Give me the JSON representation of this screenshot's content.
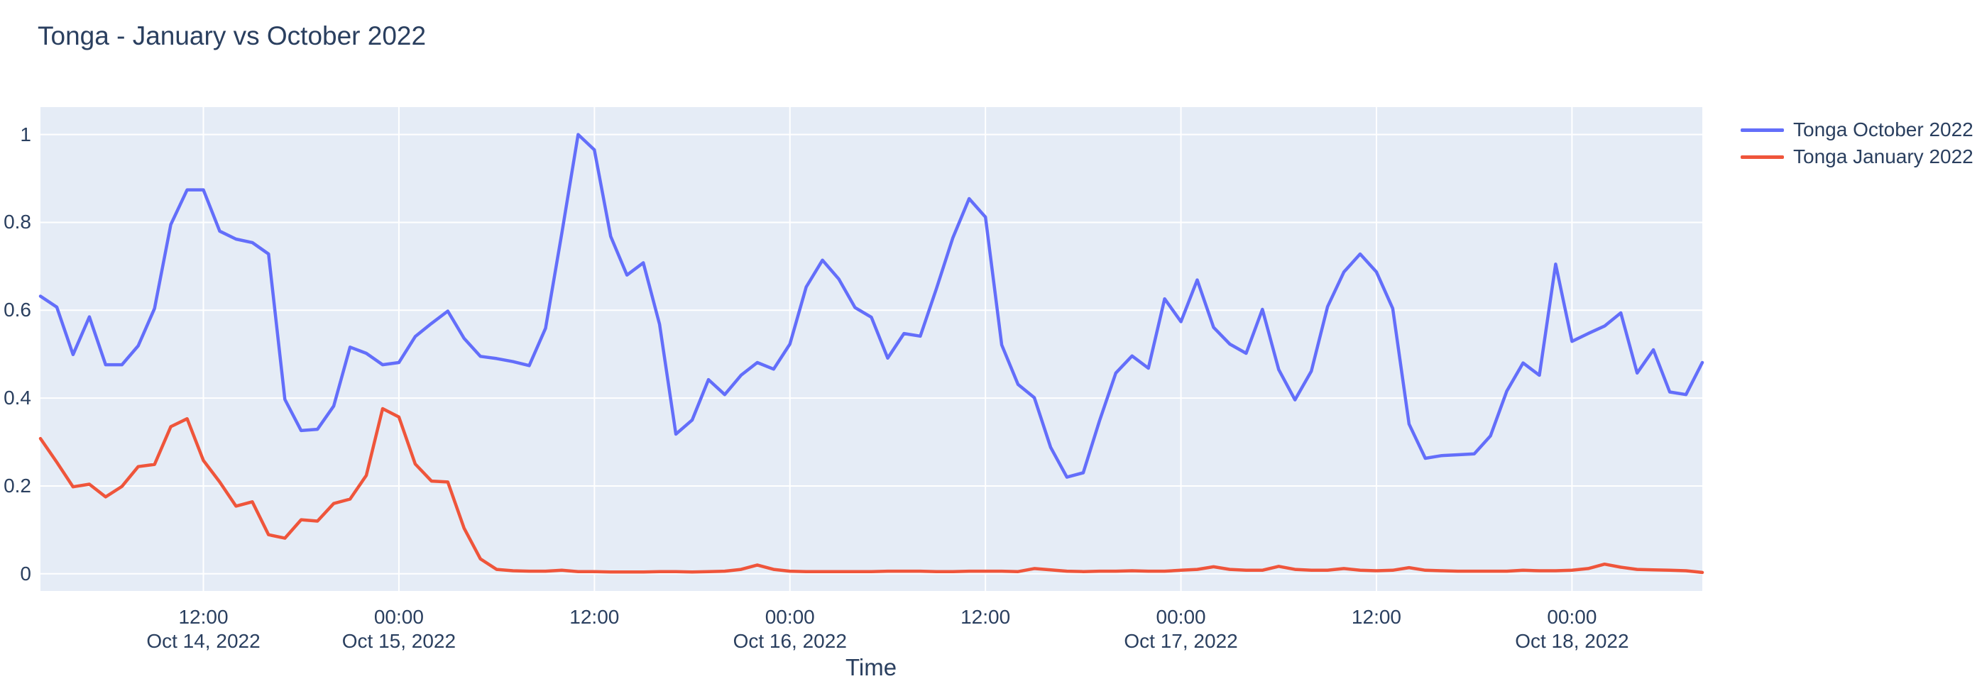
{
  "page": {
    "background": "#ffffff",
    "text_color": "#2a3f5f"
  },
  "chart_data": {
    "type": "line",
    "title": "Tonga - January vs October 2022",
    "xlabel": "Time",
    "ylabel": "",
    "plot_bg": "#e5ecf6",
    "grid": true,
    "grid_color": "#ffffff",
    "legend_position": "top-right-outside",
    "x_start": "2022-10-14 02:00",
    "x_end": "2022-10-18 08:00",
    "x_interval_hours": 1,
    "ylim": [
      -0.04,
      1.06
    ],
    "y_ticks": [
      {
        "value": 0,
        "label": "0"
      },
      {
        "value": 0.2,
        "label": "0.2"
      },
      {
        "value": 0.4,
        "label": "0.4"
      },
      {
        "value": 0.6,
        "label": "0.6"
      },
      {
        "value": 0.8,
        "label": "0.8"
      },
      {
        "value": 1,
        "label": "1"
      }
    ],
    "x_ticks": [
      {
        "hour_offset": 10,
        "time": "12:00",
        "date": "Oct 14, 2022"
      },
      {
        "hour_offset": 22,
        "time": "00:00",
        "date": "Oct 15, 2022"
      },
      {
        "hour_offset": 34,
        "time": "12:00",
        "date": ""
      },
      {
        "hour_offset": 46,
        "time": "00:00",
        "date": "Oct 16, 2022"
      },
      {
        "hour_offset": 58,
        "time": "12:00",
        "date": ""
      },
      {
        "hour_offset": 70,
        "time": "00:00",
        "date": "Oct 17, 2022"
      },
      {
        "hour_offset": 82,
        "time": "12:00",
        "date": ""
      },
      {
        "hour_offset": 94,
        "time": "00:00",
        "date": "Oct 18, 2022"
      }
    ],
    "series": [
      {
        "name": "Tonga October 2022",
        "color": "#636efa",
        "values": [
          0.632,
          0.607,
          0.499,
          0.585,
          0.476,
          0.476,
          0.519,
          0.604,
          0.795,
          0.874,
          0.874,
          0.78,
          0.762,
          0.754,
          0.728,
          0.397,
          0.326,
          0.329,
          0.382,
          0.516,
          0.502,
          0.476,
          0.481,
          0.54,
          0.57,
          0.598,
          0.536,
          0.495,
          0.49,
          0.483,
          0.474,
          0.559,
          0.775,
          1.0,
          0.965,
          0.768,
          0.68,
          0.708,
          0.568,
          0.318,
          0.35,
          0.442,
          0.408,
          0.452,
          0.481,
          0.466,
          0.523,
          0.653,
          0.714,
          0.671,
          0.606,
          0.584,
          0.491,
          0.547,
          0.541,
          0.65,
          0.765,
          0.854,
          0.812,
          0.521,
          0.431,
          0.401,
          0.288,
          0.22,
          0.23,
          0.348,
          0.457,
          0.496,
          0.468,
          0.626,
          0.574,
          0.669,
          0.561,
          0.523,
          0.502,
          0.602,
          0.465,
          0.396,
          0.461,
          0.608,
          0.687,
          0.728,
          0.687,
          0.604,
          0.341,
          0.263,
          0.269,
          0.271,
          0.273,
          0.314,
          0.416,
          0.48,
          0.452,
          0.705,
          0.529,
          0.547,
          0.564,
          0.594,
          0.457,
          0.51,
          0.414,
          0.408,
          0.481
        ]
      },
      {
        "name": "Tonga January 2022",
        "color": "#ef553b",
        "values": [
          0.308,
          0.254,
          0.198,
          0.204,
          0.175,
          0.199,
          0.244,
          0.249,
          0.335,
          0.353,
          0.258,
          0.209,
          0.154,
          0.164,
          0.089,
          0.081,
          0.123,
          0.12,
          0.16,
          0.17,
          0.224,
          0.376,
          0.357,
          0.25,
          0.211,
          0.209,
          0.104,
          0.034,
          0.01,
          0.007,
          0.006,
          0.006,
          0.008,
          0.005,
          0.005,
          0.004,
          0.004,
          0.004,
          0.005,
          0.005,
          0.004,
          0.005,
          0.006,
          0.01,
          0.02,
          0.01,
          0.006,
          0.005,
          0.005,
          0.005,
          0.005,
          0.005,
          0.006,
          0.006,
          0.006,
          0.005,
          0.005,
          0.006,
          0.006,
          0.006,
          0.005,
          0.012,
          0.009,
          0.006,
          0.005,
          0.006,
          0.006,
          0.007,
          0.006,
          0.006,
          0.008,
          0.01,
          0.016,
          0.01,
          0.008,
          0.008,
          0.017,
          0.01,
          0.008,
          0.008,
          0.012,
          0.008,
          0.007,
          0.008,
          0.014,
          0.008,
          0.007,
          0.006,
          0.006,
          0.006,
          0.006,
          0.008,
          0.007,
          0.007,
          0.008,
          0.012,
          0.022,
          0.015,
          0.01,
          0.009,
          0.008,
          0.007,
          0.003
        ]
      }
    ]
  }
}
